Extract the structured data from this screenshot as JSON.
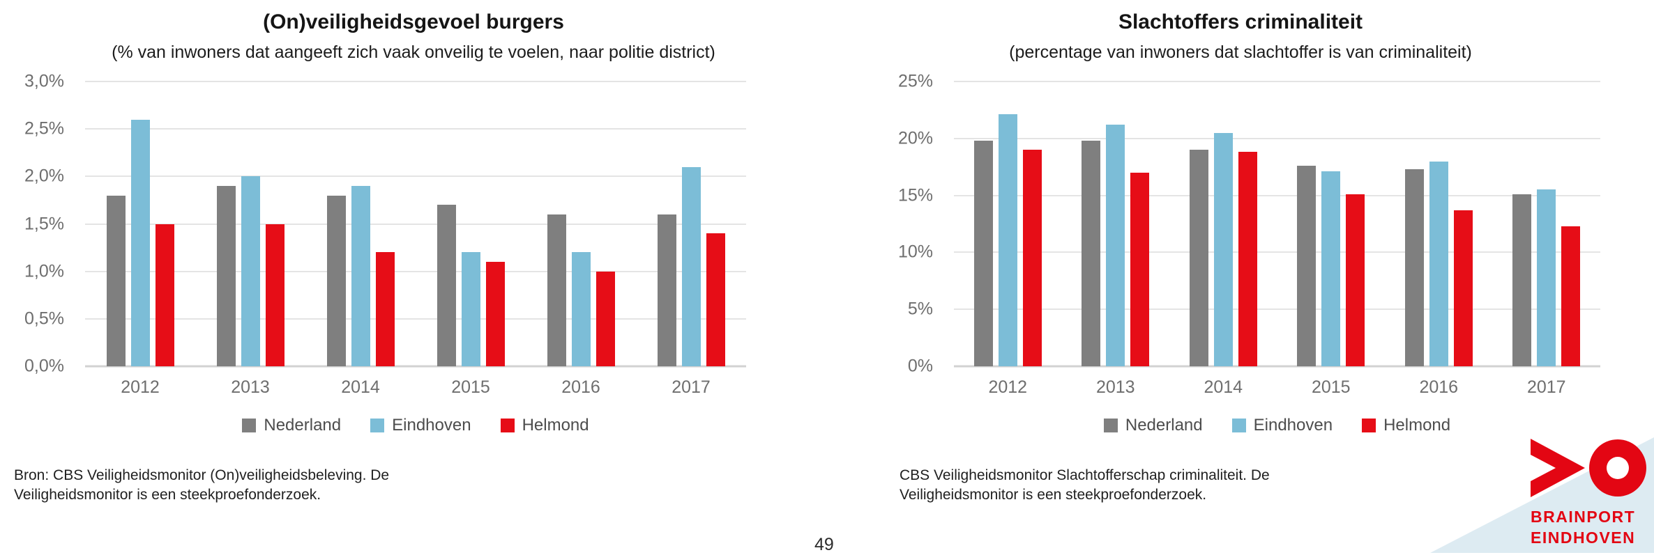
{
  "page_number": "49",
  "logo": {
    "line1": "BRAINPORT",
    "line2": "EINDHOVEN",
    "brand_color": "#e30613",
    "triangle_color": "#ddebf2"
  },
  "chart_data": [
    {
      "type": "bar",
      "title": "(On)veiligheidsgevoel burgers",
      "subtitle": "(% van inwoners dat aangeeft zich vaak onveilig te voelen, naar politie district)",
      "categories": [
        "2012",
        "2013",
        "2014",
        "2015",
        "2016",
        "2017"
      ],
      "series": [
        {
          "name": "Nederland",
          "color": "#7f7f7f",
          "values": [
            1.8,
            1.9,
            1.8,
            1.7,
            1.6,
            1.6
          ]
        },
        {
          "name": "Eindhoven",
          "color": "#7cbdd7",
          "values": [
            2.6,
            2.0,
            1.9,
            1.2,
            1.2,
            2.1
          ]
        },
        {
          "name": "Helmond",
          "color": "#e60d17",
          "values": [
            1.5,
            1.5,
            1.2,
            1.1,
            1.0,
            1.4
          ]
        }
      ],
      "ylim": [
        0,
        3
      ],
      "ytick_step": 0.5,
      "ytick_labels": [
        "3,0%",
        "2,5%",
        "2,0%",
        "1,5%",
        "1,0%",
        "0,5%",
        "0,0%"
      ],
      "grid": true,
      "legend_position": "bottom",
      "note": "Bron: CBS Veiligheidsmonitor (On)veiligheidsbeleving. De Veiligheidsmonitor is een steekproefonderzoek."
    },
    {
      "type": "bar",
      "title": "Slachtoffers criminaliteit",
      "subtitle": "(percentage van inwoners dat slachtoffer is van criminaliteit)",
      "categories": [
        "2012",
        "2013",
        "2014",
        "2015",
        "2016",
        "2017"
      ],
      "series": [
        {
          "name": "Nederland",
          "color": "#7f7f7f",
          "values": [
            19.8,
            19.8,
            19.0,
            17.6,
            17.3,
            15.1
          ]
        },
        {
          "name": "Eindhoven",
          "color": "#7cbdd7",
          "values": [
            22.1,
            21.2,
            20.5,
            17.1,
            18.0,
            15.5
          ]
        },
        {
          "name": "Helmond",
          "color": "#e60d17",
          "values": [
            19.0,
            17.0,
            18.8,
            15.1,
            13.7,
            12.3
          ]
        }
      ],
      "ylim": [
        0,
        25
      ],
      "ytick_step": 5,
      "ytick_labels": [
        "25%",
        "20%",
        "15%",
        "10%",
        "5%",
        "0%"
      ],
      "grid": true,
      "legend_position": "bottom",
      "note": "CBS Veiligheidsmonitor Slachtofferschap criminaliteit. De Veiligheidsmonitor is een steekproefonderzoek."
    }
  ]
}
